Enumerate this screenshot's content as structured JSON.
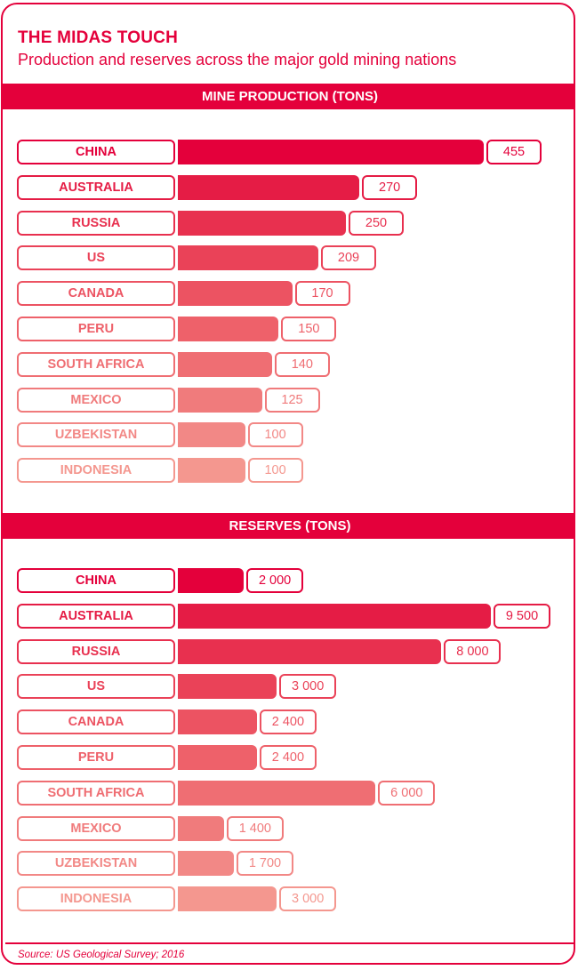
{
  "header": {
    "title": "THE MIDAS TOUCH",
    "subtitle": "Production and reserves across the major gold mining nations"
  },
  "colors": {
    "accent": "#e4003b",
    "row_shades": [
      "#e4003b",
      "#e51c45",
      "#e8304f",
      "#ea4258",
      "#ec5362",
      "#ee616a",
      "#ef6e73",
      "#f07b7c",
      "#f28886",
      "#f4978f"
    ]
  },
  "footer": {
    "source": "Source: US Geological Survey; 2016"
  },
  "chart_data": [
    {
      "type": "bar",
      "orientation": "horizontal",
      "title": "MINE PRODUCTION (TONS)",
      "categories": [
        "CHINA",
        "AUSTRALIA",
        "RUSSIA",
        "US",
        "CANADA",
        "PERU",
        "SOUTH AFRICA",
        "MEXICO",
        "UZBEKISTAN",
        "INDONESIA"
      ],
      "values": [
        455,
        270,
        250,
        209,
        170,
        150,
        140,
        125,
        100,
        100
      ],
      "value_labels": [
        "455",
        "270",
        "250",
        "209",
        "170",
        "150",
        "140",
        "125",
        "100",
        "100"
      ],
      "xlim": [
        0,
        455
      ]
    },
    {
      "type": "bar",
      "orientation": "horizontal",
      "title": "RESERVES (TONS)",
      "categories": [
        "CHINA",
        "AUSTRALIA",
        "RUSSIA",
        "US",
        "CANADA",
        "PERU",
        "SOUTH AFRICA",
        "MEXICO",
        "UZBEKISTAN",
        "INDONESIA"
      ],
      "values": [
        2000,
        9500,
        8000,
        3000,
        2400,
        2400,
        6000,
        1400,
        1700,
        3000
      ],
      "value_labels": [
        "2 000",
        "9 500",
        "8 000",
        "3 000",
        "2 400",
        "2 400",
        "6 000",
        "1 400",
        "1 700",
        "3 000"
      ],
      "xlim": [
        0,
        9500
      ]
    }
  ]
}
